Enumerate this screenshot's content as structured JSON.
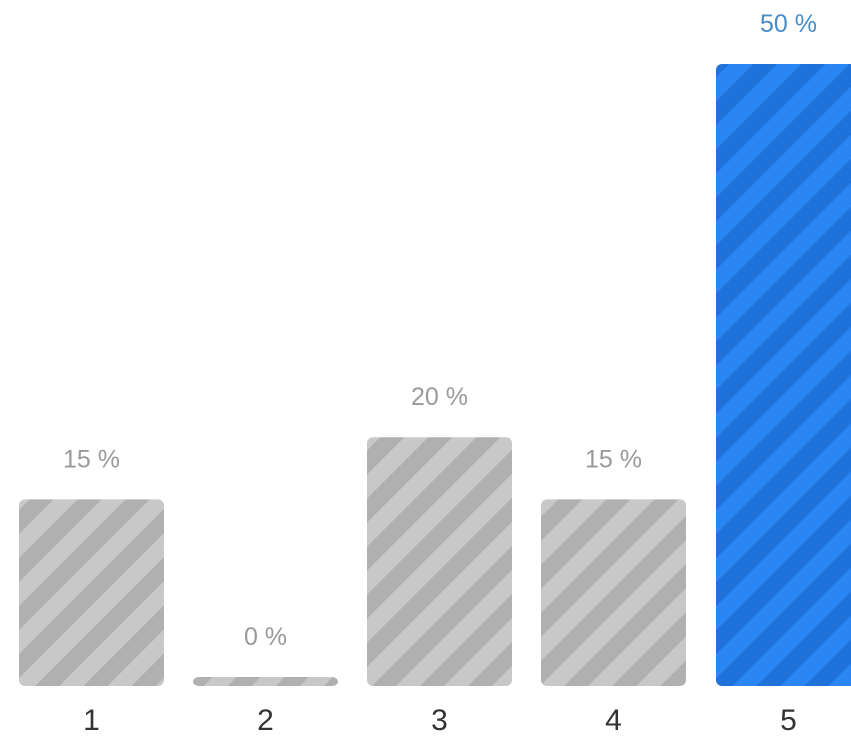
{
  "colors": {
    "default_bar": "#c8c8c8",
    "default_stripe": "#b0b0b0",
    "highlight_bar": "#2a86f2",
    "highlight_stripe": "#1f72da",
    "default_label": "#9a9a9a",
    "highlight_label": "#4a8cc4",
    "category_label": "#333333"
  },
  "chart_data": {
    "type": "bar",
    "categories": [
      "1",
      "2",
      "3",
      "4",
      "5"
    ],
    "values": [
      15,
      0,
      20,
      15,
      50
    ],
    "value_labels": [
      "15 %",
      "0 %",
      "20 %",
      "15 %",
      "50 %"
    ],
    "highlight_index": 4,
    "title": "",
    "xlabel": "",
    "ylabel": "",
    "ylim": [
      0,
      50
    ],
    "grid": false
  }
}
